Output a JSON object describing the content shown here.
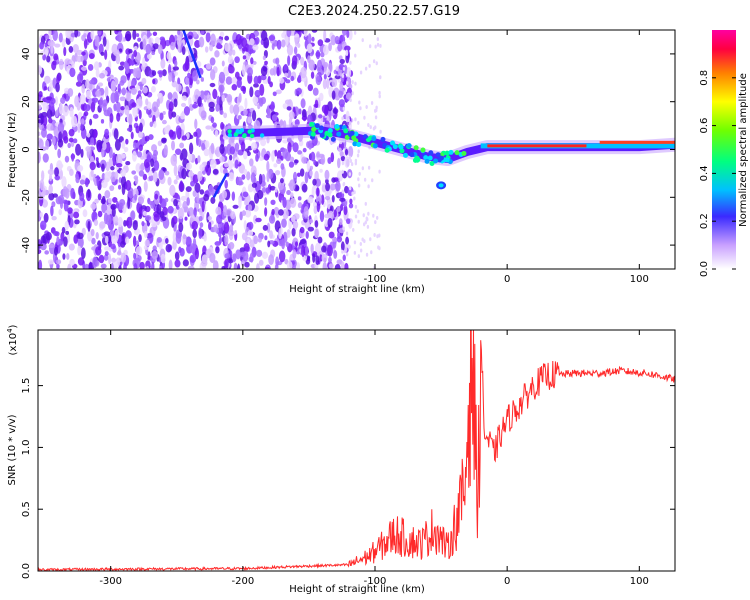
{
  "title": "C2E3.2024.250.22.57.G19",
  "colors": {
    "spectrogram_points": "#7a1aff",
    "spectrogram_light": "#d7b8ff",
    "snr_line": "#ff2a2a",
    "axis": "#000000"
  },
  "chart_data": [
    {
      "type": "heatmap",
      "xlabel": "Height of straight line (km)",
      "ylabel": "Frequency (Hz)",
      "xlim": [
        -355,
        127
      ],
      "ylim": [
        -50,
        50
      ],
      "x_ticks": [
        -300,
        -200,
        -100,
        0,
        100
      ],
      "y_ticks": [
        -40,
        -20,
        0,
        20,
        40
      ],
      "colorbar": {
        "label": "Normalized spectral amplitude",
        "range": [
          0,
          1
        ],
        "ticks": [
          "0.0",
          "0.2",
          "0.4",
          "0.6",
          "0.8"
        ]
      },
      "ridge": [
        {
          "x": -210,
          "y": 7
        },
        {
          "x": -190,
          "y": 7
        },
        {
          "x": -140,
          "y": 8
        },
        {
          "x": -120,
          "y": 6
        },
        {
          "x": -100,
          "y": 3
        },
        {
          "x": -80,
          "y": 0
        },
        {
          "x": -60,
          "y": -3
        },
        {
          "x": -45,
          "y": -4
        },
        {
          "x": -30,
          "y": -1
        },
        {
          "x": -15,
          "y": 1
        },
        {
          "x": 0,
          "y": 1
        },
        {
          "x": 50,
          "y": 1
        },
        {
          "x": 100,
          "y": 1
        },
        {
          "x": 127,
          "y": 2
        }
      ]
    },
    {
      "type": "line",
      "xlabel": "Height of straight line (km)",
      "ylabel": "SNR (10 * v/v)",
      "y_multiplier": "(x10",
      "y_multiplier_exp": "4",
      "y_multiplier_close": ")",
      "xlim": [
        -355,
        127
      ],
      "ylim": [
        0,
        1.95
      ],
      "x_ticks": [
        -300,
        -200,
        -100,
        0,
        100
      ],
      "y_ticks": [
        "0.0",
        "0.5",
        "1.0",
        "1.5"
      ],
      "series": [
        {
          "x": [
            -355,
            -300,
            -200,
            -150,
            -120,
            -105,
            -95,
            -85,
            -75,
            -65,
            -55,
            -45,
            -38,
            -32,
            -27,
            -24,
            -22,
            -20,
            -17,
            -14,
            -10,
            -5,
            0,
            10,
            20,
            30,
            50,
            70,
            85,
            95,
            105,
            115,
            127
          ],
          "y": [
            0.01,
            0.015,
            0.02,
            0.04,
            0.05,
            0.12,
            0.2,
            0.3,
            0.25,
            0.22,
            0.35,
            0.18,
            0.42,
            0.65,
            1.95,
            1.0,
            0.55,
            1.9,
            1.1,
            1.05,
            0.95,
            1.1,
            1.22,
            1.35,
            1.5,
            1.58,
            1.6,
            1.6,
            1.62,
            1.61,
            1.6,
            1.58,
            1.55
          ]
        }
      ]
    }
  ]
}
